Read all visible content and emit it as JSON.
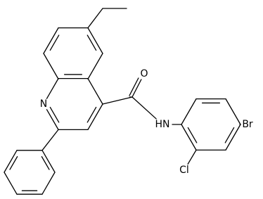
{
  "atoms": {
    "ring_n": "N",
    "oxygen": "O",
    "amide_n": "HN",
    "bromine": "Br",
    "chlorine": "Cl"
  }
}
